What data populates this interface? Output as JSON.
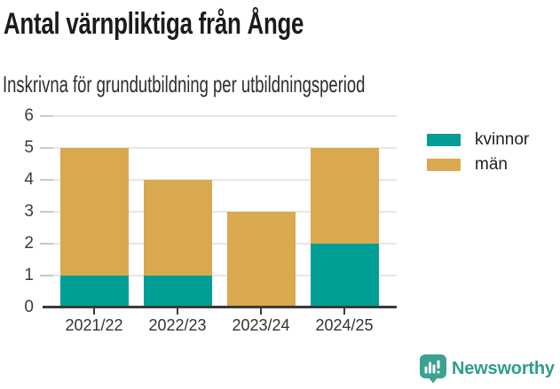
{
  "header": {
    "title": "Antal värnpliktiga från Ånge",
    "subtitle": "Inskrivna för grundutbildning per utbildningsperiod"
  },
  "chart_data": {
    "type": "bar",
    "stacked": true,
    "title": "Antal värnpliktiga från Ånge",
    "subtitle": "Inskrivna för grundutbildning per utbildningsperiod",
    "categories": [
      "2021/22",
      "2022/23",
      "2023/24",
      "2024/25"
    ],
    "series": [
      {
        "name": "kvinnor",
        "color": "#009e95",
        "values": [
          1,
          1,
          0,
          2
        ]
      },
      {
        "name": "män",
        "color": "#d9a84f",
        "values": [
          4,
          3,
          3,
          3
        ]
      }
    ],
    "stack_totals": [
      5,
      4,
      3,
      5
    ],
    "xlabel": "",
    "ylabel": "",
    "ylim": [
      0,
      6
    ],
    "yticks": [
      0,
      1,
      2,
      3,
      4,
      5,
      6
    ],
    "grid": true,
    "legend_position": "right"
  },
  "branding": {
    "logo_text": "Newsworthy",
    "logo_text_color": "#2f9c8c",
    "badge_color": "#3aa290"
  }
}
